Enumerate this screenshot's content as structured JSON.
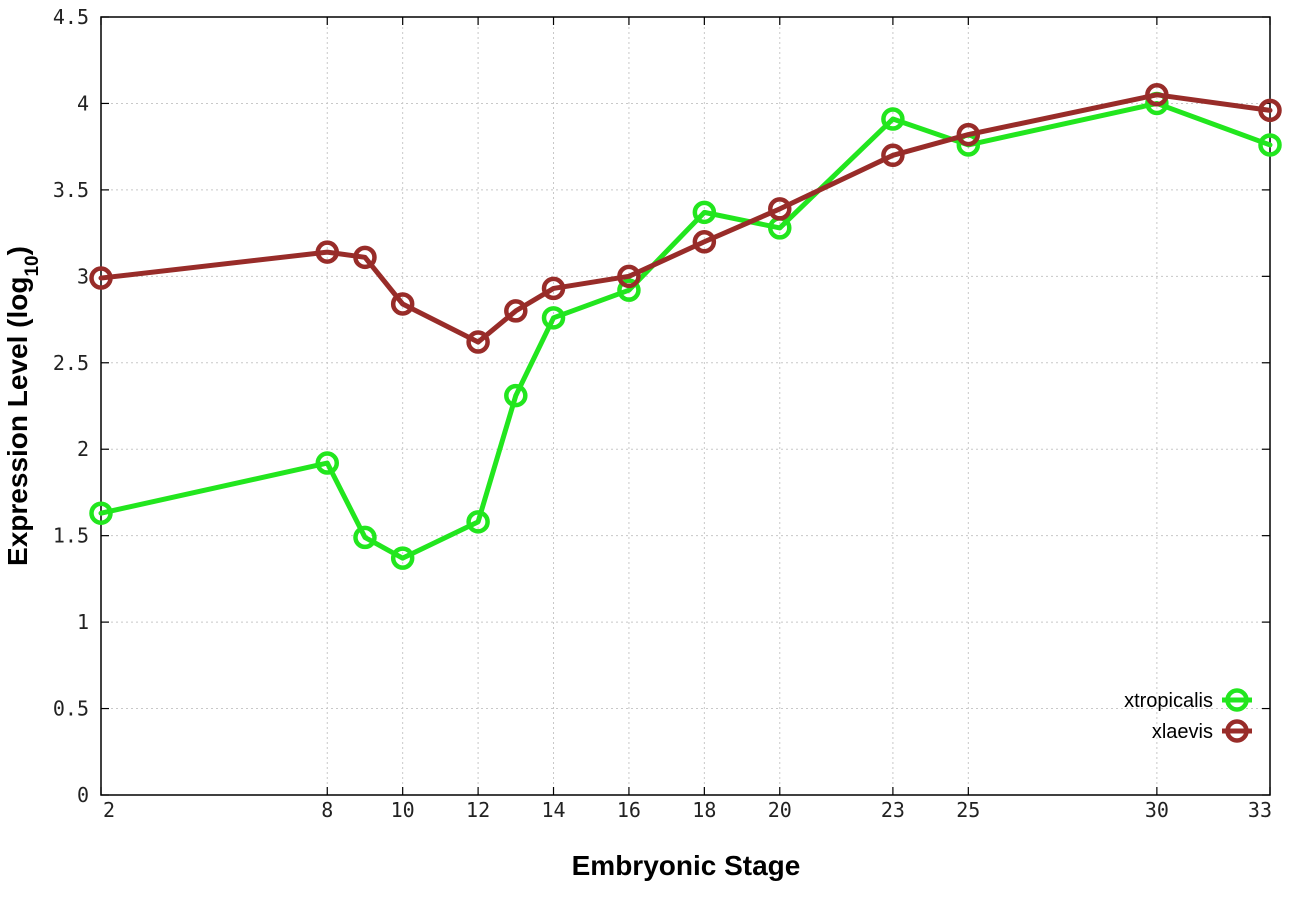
{
  "chart_data": {
    "type": "line",
    "xlabel": "Embryonic Stage",
    "ylabel_main": "Expression Level (log",
    "ylabel_sub": "10",
    "ylabel_close": ")",
    "x_tick_labels": [
      "2",
      "8",
      "10",
      "12",
      "14",
      "16",
      "18",
      "20",
      "23",
      "25",
      "30",
      "33"
    ],
    "y_tick_labels": [
      "0",
      "0.5",
      "1",
      "1.5",
      "2",
      "2.5",
      "3",
      "3.5",
      "4",
      "4.5"
    ],
    "ylim": [
      0,
      4.5
    ],
    "grid": true,
    "legend_position": "bottom-right",
    "x": [
      "2",
      "8",
      "9",
      "10",
      "12",
      "13",
      "14",
      "16",
      "18",
      "20",
      "23",
      "25",
      "30",
      "33"
    ],
    "series": [
      {
        "name": "xtropicalis",
        "color": "#22e61e",
        "values": [
          1.63,
          1.92,
          1.49,
          1.37,
          1.58,
          2.31,
          2.76,
          2.92,
          3.37,
          3.28,
          3.91,
          3.76,
          4.0,
          3.76
        ]
      },
      {
        "name": "xlaevis",
        "color": "#982c29",
        "values": [
          2.99,
          3.14,
          3.11,
          2.84,
          2.62,
          2.8,
          2.93,
          3.0,
          3.2,
          3.39,
          3.7,
          3.82,
          4.05,
          3.96
        ]
      }
    ]
  }
}
